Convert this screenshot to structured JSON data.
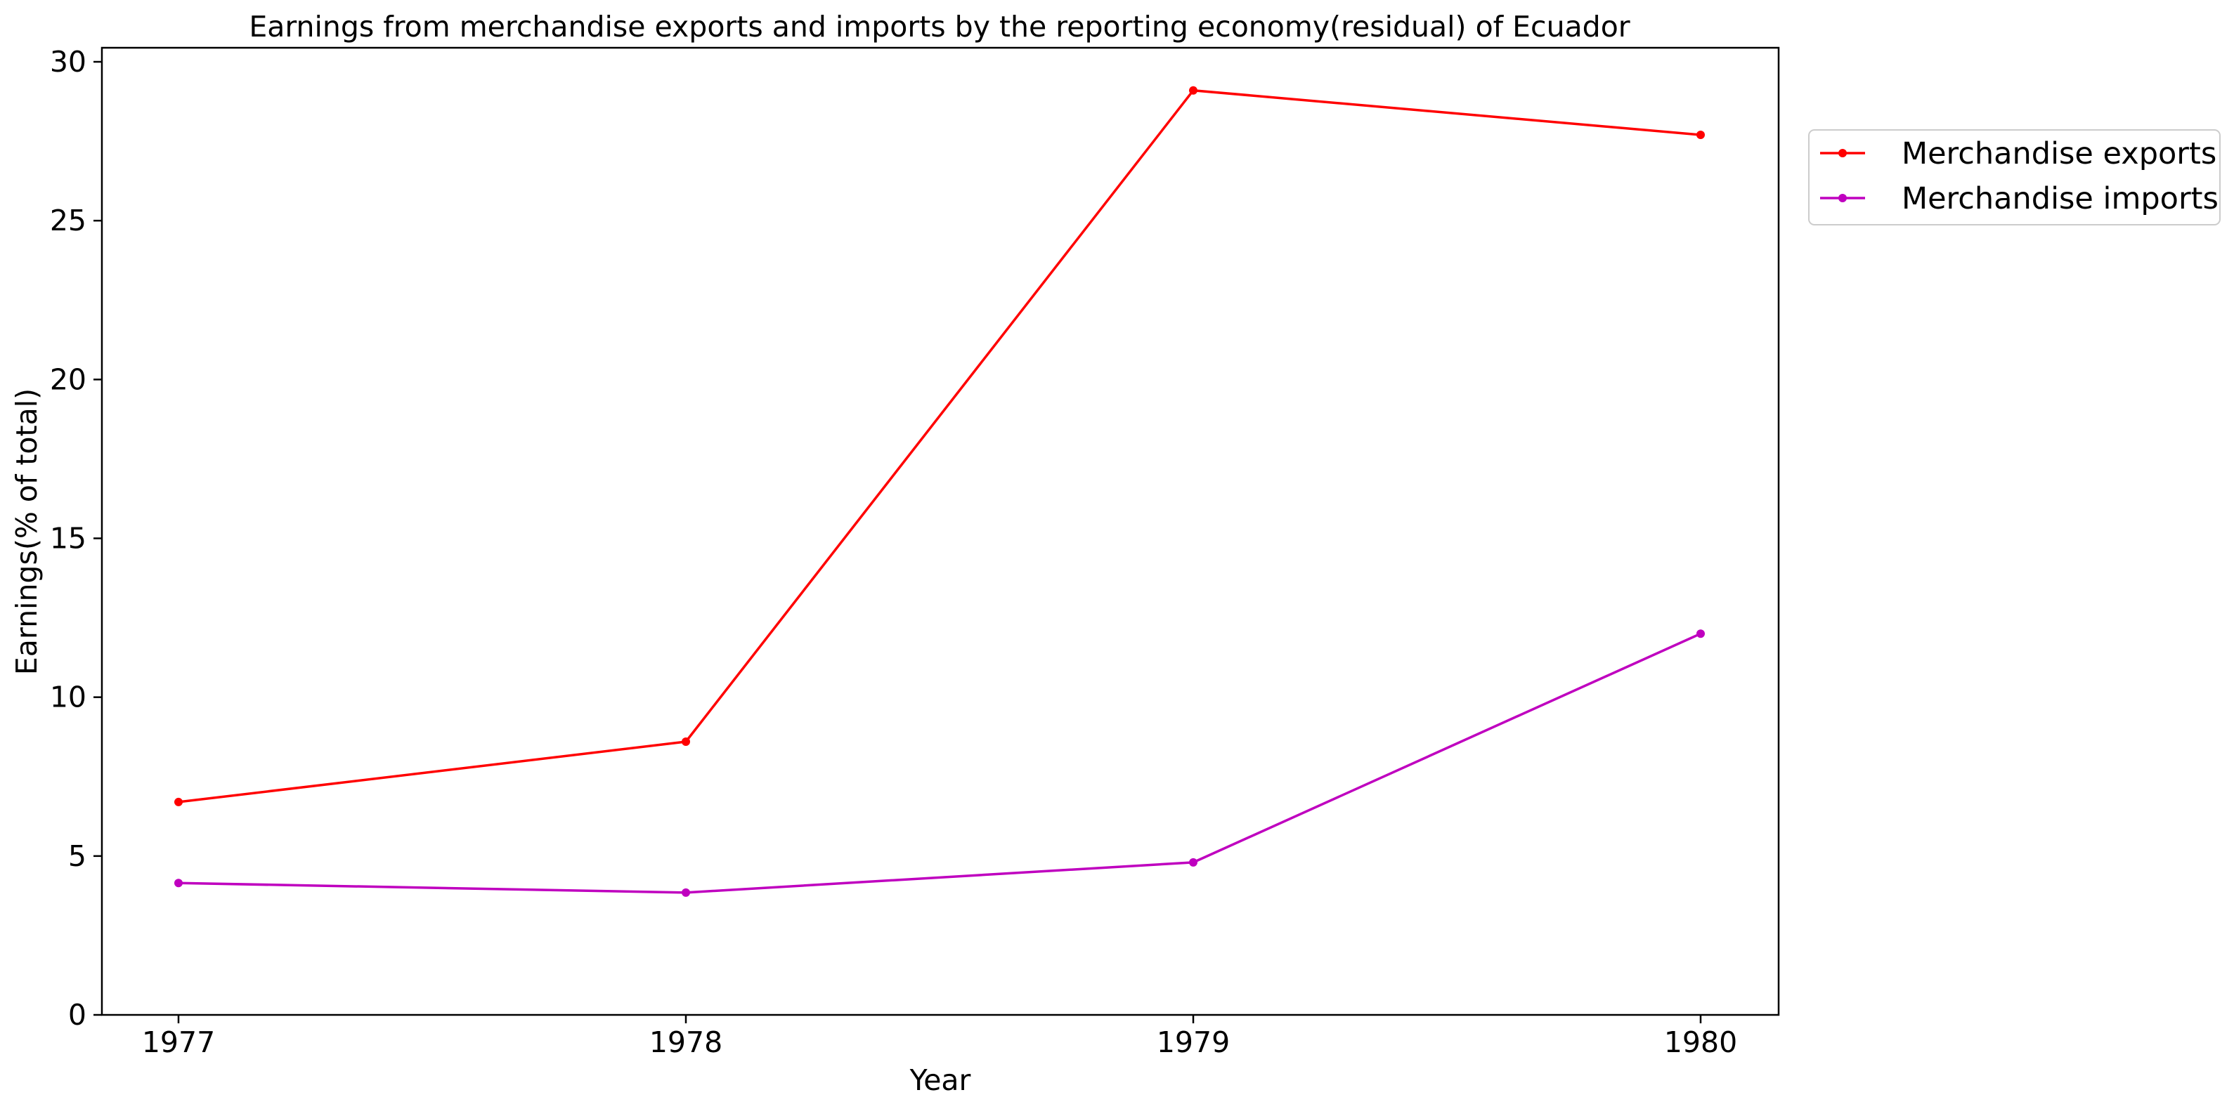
{
  "chart_data": {
    "type": "line",
    "title": "Earnings from merchandise exports and imports by the reporting economy(residual) of Ecuador",
    "xlabel": "Year",
    "ylabel": "Earnings(% of total)",
    "x": [
      "1977",
      "1978",
      "1979",
      "1980"
    ],
    "ylim": [
      0,
      30
    ],
    "yticks": [
      "0",
      "5",
      "10",
      "15",
      "20",
      "25",
      "30"
    ],
    "grid": false,
    "legend_position": "outside-top-right",
    "series": [
      {
        "name": "Merchandise exports",
        "color": "#ff0000",
        "values": [
          6.7,
          8.6,
          29.1,
          27.7
        ]
      },
      {
        "name": "Merchandise imports",
        "color": "#bf00bf",
        "values": [
          4.15,
          3.85,
          4.8,
          12.0
        ]
      }
    ]
  }
}
